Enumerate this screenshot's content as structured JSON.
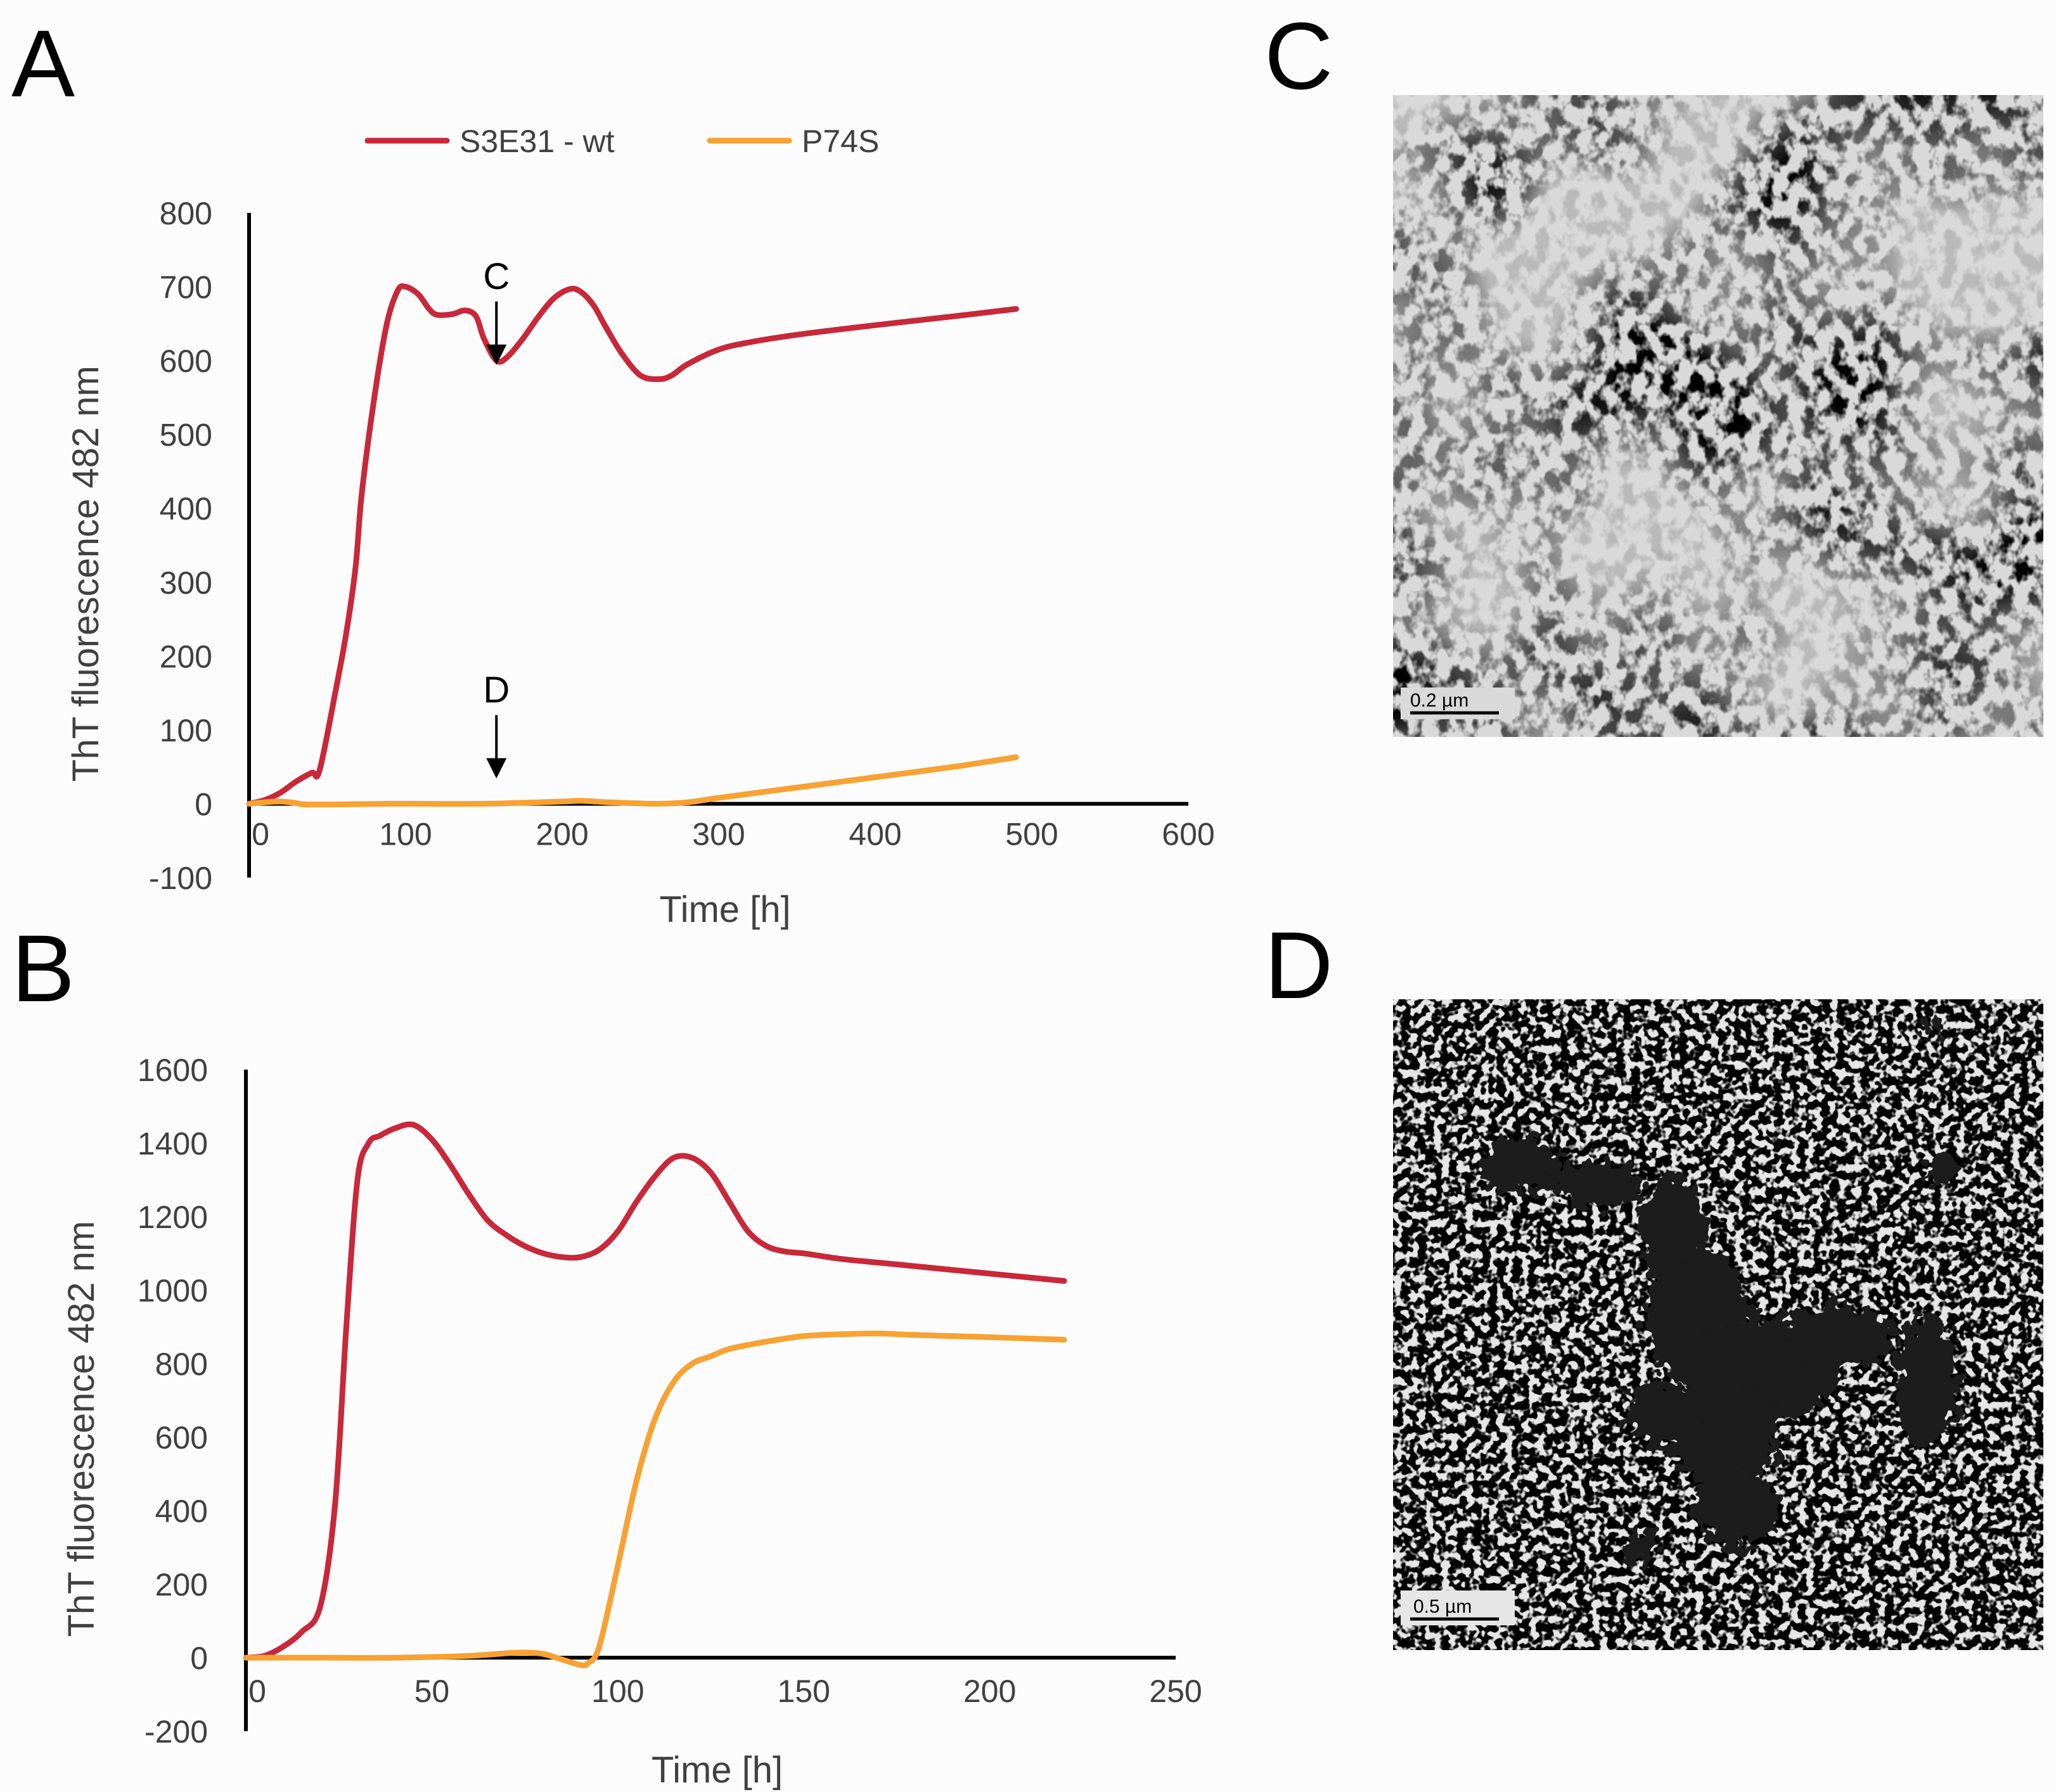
{
  "panels": {
    "a": {
      "letter": "A"
    },
    "b": {
      "letter": "B"
    },
    "c": {
      "letter": "C",
      "scale_bar": "0.2 µm"
    },
    "d": {
      "letter": "D",
      "scale_bar": "0.5 µm"
    }
  },
  "legend": {
    "placement": "top",
    "items": [
      "S3E31 - wt",
      "P74S"
    ]
  },
  "colors": {
    "S3E31 - wt": "#c8283a",
    "P74S": "#f7a233",
    "axis": "#000000",
    "text": "#404040"
  },
  "chart_data": [
    {
      "type": "line",
      "panel": "A",
      "xlabel": "Time [h]",
      "ylabel": "ThT fluorescence 482 nm",
      "xlim": [
        0,
        600
      ],
      "ylim": [
        -100,
        800
      ],
      "xticks": [
        0,
        100,
        200,
        300,
        400,
        500,
        600
      ],
      "yticks": [
        -100,
        0,
        100,
        200,
        300,
        400,
        500,
        600,
        700,
        800
      ],
      "grid": false,
      "series": [
        {
          "name": "S3E31 - wt",
          "x": [
            0,
            10,
            20,
            30,
            40,
            45,
            55,
            62,
            68,
            72,
            80,
            88,
            95,
            100,
            108,
            115,
            120,
            130,
            138,
            145,
            150,
            158,
            165,
            175,
            185,
            195,
            205,
            212,
            220,
            228,
            238,
            250,
            262,
            270,
            280,
            300,
            320,
            350,
            400,
            450,
            490
          ],
          "y": [
            0,
            5,
            15,
            30,
            42,
            45,
            150,
            230,
            320,
            420,
            550,
            650,
            695,
            700,
            690,
            670,
            662,
            663,
            668,
            660,
            630,
            600,
            605,
            630,
            660,
            685,
            697,
            693,
            675,
            645,
            610,
            580,
            575,
            580,
            595,
            615,
            625,
            635,
            648,
            660,
            670
          ]
        },
        {
          "name": "P74S",
          "x": [
            0,
            10,
            20,
            30,
            40,
            90,
            100,
            150,
            200,
            212,
            230,
            260,
            280,
            300,
            350,
            400,
            450,
            490
          ],
          "y": [
            0,
            2,
            3,
            1,
            -1,
            0,
            0,
            0,
            3,
            4,
            2,
            0,
            2,
            8,
            22,
            36,
            50,
            63
          ]
        }
      ],
      "annotations": [
        {
          "label": "C",
          "x": 158,
          "y": 620
        },
        {
          "label": "D",
          "x": 158,
          "y": 60
        }
      ]
    },
    {
      "type": "line",
      "panel": "B",
      "xlabel": "Time [h]",
      "ylabel": "ThT fluorescence 482 nm",
      "xlim": [
        0,
        250
      ],
      "ylim": [
        -200,
        1600
      ],
      "xticks": [
        0,
        50,
        100,
        150,
        200,
        250
      ],
      "yticks": [
        -200,
        0,
        200,
        400,
        600,
        800,
        1000,
        1200,
        1400,
        1600
      ],
      "grid": false,
      "series": [
        {
          "name": "S3E31 - wt",
          "x": [
            0,
            5,
            10,
            15,
            20,
            24,
            27,
            30,
            33,
            36,
            40,
            45,
            50,
            55,
            60,
            65,
            70,
            75,
            80,
            85,
            90,
            95,
            100,
            105,
            110,
            115,
            120,
            125,
            130,
            135,
            140,
            145,
            150,
            160,
            170,
            180,
            190,
            200,
            210,
            220
          ],
          "y": [
            0,
            5,
            30,
            70,
            140,
            420,
            900,
            1300,
            1400,
            1420,
            1440,
            1450,
            1410,
            1340,
            1260,
            1190,
            1150,
            1120,
            1100,
            1090,
            1090,
            1110,
            1160,
            1240,
            1310,
            1360,
            1360,
            1320,
            1240,
            1160,
            1120,
            1105,
            1100,
            1085,
            1075,
            1065,
            1055,
            1045,
            1035,
            1025
          ]
        },
        {
          "name": "P74S",
          "x": [
            0,
            20,
            40,
            60,
            70,
            75,
            80,
            85,
            90,
            92,
            95,
            100,
            105,
            110,
            115,
            120,
            125,
            130,
            140,
            150,
            160,
            170,
            180,
            200,
            220
          ],
          "y": [
            0,
            0,
            0,
            5,
            12,
            14,
            10,
            -5,
            -20,
            -15,
            30,
            250,
            480,
            650,
            750,
            800,
            820,
            840,
            860,
            875,
            880,
            882,
            878,
            872,
            865
          ]
        }
      ]
    }
  ]
}
